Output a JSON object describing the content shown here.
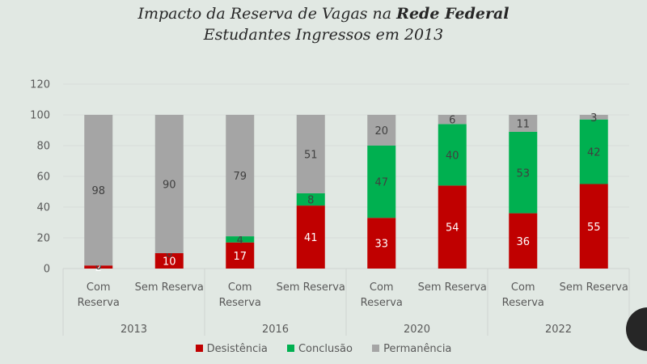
{
  "chart_data": {
    "type": "bar",
    "stacked": true,
    "title_parts": [
      "Impacto da Reserva de Vagas na ",
      "Rede Federal"
    ],
    "subtitle": "Estudantes Ingressos em 2013",
    "xlabel": "",
    "ylabel": "",
    "ylim": [
      0,
      120
    ],
    "yticks": [
      0,
      20,
      40,
      60,
      80,
      100,
      120
    ],
    "grid": true,
    "legend_position": "bottom",
    "groups": [
      "2013",
      "2016",
      "2020",
      "2022"
    ],
    "categories": [
      "Com Reserva",
      "Sem Reserva",
      "Com Reserva",
      "Sem Reserva",
      "Com Reserva",
      "Sem Reserva",
      "Com Reserva",
      "Sem Reserva"
    ],
    "category_lines": [
      [
        "Com",
        "Reserva"
      ],
      [
        "Sem Reserva"
      ],
      [
        "Com",
        "Reserva"
      ],
      [
        "Sem Reserva"
      ],
      [
        "Com",
        "Reserva"
      ],
      [
        "Sem Reserva"
      ],
      [
        "Com",
        "Reserva"
      ],
      [
        "Sem Reserva"
      ]
    ],
    "series": [
      {
        "name": "Desistência",
        "color": "#c00000",
        "label_color": "#ffffff",
        "values": [
          2,
          10,
          17,
          41,
          33,
          54,
          36,
          55
        ]
      },
      {
        "name": "Conclusão",
        "color": "#00b050",
        "label_color": "#404040",
        "values": [
          0,
          0,
          4,
          8,
          47,
          40,
          53,
          42
        ]
      },
      {
        "name": "Permanência",
        "color": "#a5a5a5",
        "label_color": "#404040",
        "values": [
          98,
          90,
          79,
          51,
          20,
          6,
          11,
          3
        ]
      }
    ]
  }
}
